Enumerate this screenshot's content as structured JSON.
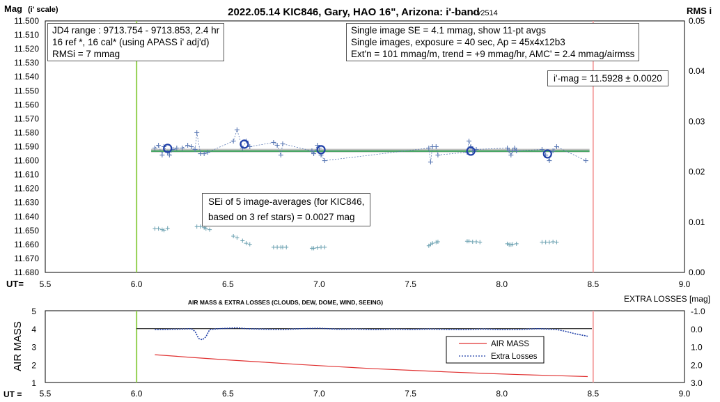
{
  "chart_data": [
    {
      "type": "scatter",
      "title": "2022.05.14 KIC846, Gary, HAO 16\", Arizona: i'-band",
      "version": "- v2514",
      "ylabel": "Mag",
      "ylabel_sub": "(i' scale)",
      "y2label": "RMS i",
      "xlabel": "UT=",
      "xlim": [
        5.5,
        9.0
      ],
      "ylim": [
        11.5,
        11.68
      ],
      "y_reversed": true,
      "y2lim": [
        0.0,
        0.05
      ],
      "x_ticks": [
        "5.5",
        "6.0",
        "6.5",
        "7.0",
        "7.5",
        "8.0",
        "8.5",
        "9.0"
      ],
      "y_ticks": [
        "11.500",
        "11.510",
        "11.520",
        "11.530",
        "11.540",
        "11.550",
        "11.560",
        "11.570",
        "11.580",
        "11.590",
        "11.600",
        "11.610",
        "11.620",
        "11.630",
        "11.640",
        "11.650",
        "11.660",
        "11.670",
        "11.680"
      ],
      "y2_ticks": [
        "0.00",
        "0.01",
        "0.02",
        "0.03",
        "0.04",
        "0.05"
      ],
      "vlines": [
        {
          "x": 6.0,
          "color": "#92d050"
        },
        {
          "x": 8.5,
          "color": "#f4a6a6"
        }
      ],
      "hlines": [
        {
          "y": 11.5928,
          "color": "#bfbfbf"
        },
        {
          "y": 11.5932,
          "color": "#3aa35a"
        }
      ],
      "series": [
        {
          "kind": "individual-images",
          "color": "#5a78b4",
          "x": [
            6.1,
            6.12,
            6.14,
            6.15,
            6.17,
            6.18,
            6.2,
            6.22,
            6.25,
            6.28,
            6.3,
            6.32,
            6.33,
            6.35,
            6.37,
            6.39,
            6.53,
            6.55,
            6.58,
            6.6,
            6.62,
            6.75,
            6.77,
            6.79,
            6.8,
            6.96,
            6.97,
            6.99,
            7.0,
            7.01,
            7.03,
            7.6,
            7.61,
            7.62,
            7.64,
            7.65,
            7.81,
            7.82,
            7.83,
            7.84,
            7.86,
            8.03,
            8.04,
            8.05,
            8.06,
            8.07,
            8.08,
            8.22,
            8.24,
            8.26,
            8.28,
            8.3,
            8.46
          ],
          "y": [
            11.591,
            11.589,
            11.596,
            11.59,
            11.594,
            11.596,
            11.592,
            11.591,
            11.591,
            11.589,
            11.59,
            11.592,
            11.58,
            11.595,
            11.595,
            11.594,
            11.586,
            11.578,
            11.591,
            11.586,
            11.59,
            11.587,
            11.589,
            11.596,
            11.588,
            11.593,
            11.595,
            11.589,
            11.591,
            11.596,
            11.6,
            11.591,
            11.601,
            11.59,
            11.59,
            11.596,
            11.594,
            11.586,
            11.59,
            11.593,
            11.592,
            11.591,
            11.593,
            11.596,
            11.593,
            11.591,
            11.593,
            11.592,
            11.596,
            11.6,
            11.593,
            11.59,
            11.6
          ]
        },
        {
          "kind": "11-pt-averages",
          "color": "#1f3fa8",
          "x": [
            6.17,
            6.59,
            7.01,
            7.83,
            8.25
          ],
          "y": [
            11.5912,
            11.5882,
            11.5922,
            11.5932,
            11.5952
          ]
        },
        {
          "kind": "rms-i",
          "color": "#6aa0b0",
          "axis": "right",
          "x": [
            6.1,
            6.12,
            6.14,
            6.15,
            6.17,
            6.33,
            6.35,
            6.37,
            6.38,
            6.4,
            6.53,
            6.55,
            6.58,
            6.6,
            6.62,
            6.75,
            6.77,
            6.79,
            6.8,
            6.82,
            6.96,
            6.97,
            6.99,
            7.01,
            7.03,
            7.6,
            7.61,
            7.62,
            7.64,
            7.65,
            7.81,
            7.82,
            7.84,
            7.86,
            7.88,
            8.03,
            8.04,
            8.05,
            8.06,
            8.08,
            8.22,
            8.24,
            8.26,
            8.28,
            8.3
          ],
          "y": [
            0.0087,
            0.0087,
            0.0085,
            0.0084,
            0.0088,
            0.0091,
            0.0091,
            0.0089,
            0.0087,
            0.0085,
            0.0072,
            0.0069,
            0.0063,
            0.0058,
            0.0056,
            0.005,
            0.005,
            0.005,
            0.005,
            0.005,
            0.0048,
            0.0048,
            0.0049,
            0.005,
            0.005,
            0.0053,
            0.0056,
            0.0058,
            0.006,
            0.0061,
            0.0062,
            0.0062,
            0.0061,
            0.0061,
            0.006,
            0.0057,
            0.0055,
            0.0055,
            0.0056,
            0.0057,
            0.006,
            0.006,
            0.006,
            0.0061,
            0.006
          ]
        }
      ]
    },
    {
      "type": "line",
      "title": "AIR MASS & EXTRA LOSSES (CLOUDS, DEW, DOME, WIND, SEEING)",
      "ylabel": "AIR MASS",
      "y2label": "EXTRA LOSSES [mag]",
      "xlabel": "UT =",
      "xlim": [
        5.5,
        9.0
      ],
      "ylim": [
        1,
        5
      ],
      "y2lim": [
        -1.0,
        3.0
      ],
      "y2_reversed": true,
      "x_ticks": [
        "5.5",
        "6.0",
        "6.5",
        "7.0",
        "7.5",
        "8.0",
        "8.5",
        "9.0"
      ],
      "y_ticks": [
        "1",
        "2",
        "3",
        "4",
        "5"
      ],
      "y2_ticks": [
        "-1.0",
        "0.0",
        "1.0",
        "2.0",
        "3.0"
      ],
      "legend": [
        "AIR MASS",
        "Extra Losses"
      ],
      "series": [
        {
          "name": "AIR MASS",
          "color": "#e03030",
          "x": [
            6.1,
            6.3,
            6.5,
            6.7,
            6.9,
            7.1,
            7.3,
            7.5,
            7.7,
            7.9,
            8.1,
            8.3,
            8.47
          ],
          "y": [
            2.55,
            2.4,
            2.26,
            2.13,
            2.0,
            1.88,
            1.77,
            1.68,
            1.59,
            1.51,
            1.44,
            1.38,
            1.33
          ]
        },
        {
          "name": "Extra Losses",
          "color": "#1f3fa8",
          "x": [
            6.1,
            6.15,
            6.2,
            6.25,
            6.3,
            6.32,
            6.34,
            6.36,
            6.38,
            6.4,
            6.45,
            6.5,
            6.55,
            6.6,
            6.7,
            6.8,
            6.9,
            7.0,
            7.1,
            7.2,
            7.3,
            7.4,
            7.5,
            7.6,
            7.7,
            7.8,
            7.9,
            8.0,
            8.1,
            8.2,
            8.25,
            8.3,
            8.35,
            8.4,
            8.47
          ],
          "y": [
            0.05,
            0.04,
            0.03,
            0.02,
            0.0,
            0.15,
            0.55,
            0.62,
            0.45,
            0.05,
            0.0,
            -0.02,
            -0.05,
            0.0,
            0.03,
            0.05,
            0.0,
            -0.02,
            0.03,
            0.02,
            0.05,
            0.03,
            0.04,
            0.02,
            0.04,
            0.05,
            0.02,
            0.05,
            0.04,
            0.0,
            0.02,
            0.05,
            0.15,
            0.28,
            0.42
          ]
        }
      ]
    }
  ],
  "info_left": {
    "line1": "JD4 range : 9713.754 - 9713.853, 2.4  hr",
    "line2": "16 ref *, 16 cal* (using APASS i' adj'd)",
    "line3": "RMSi = 7 mmag"
  },
  "info_right": {
    "line1": "Single image SE = 4.1 mmag, show 11-pt avgs",
    "line2": "Single images, exposure = 40 sec, Ap = 45x4x12b3",
    "line3": "Ext'n = 101 mmag/m, trend = +9 mmag/hr, AMC' = 2.4 mmag/airmss"
  },
  "imag_box": {
    "text": "i'-mag = 11.5928 ± 0.0020"
  },
  "sei_box": {
    "line1": "SEi of 5 image-averages (for KIC846,",
    "line2": "based on 3 ref stars) = 0.0027 mag"
  }
}
